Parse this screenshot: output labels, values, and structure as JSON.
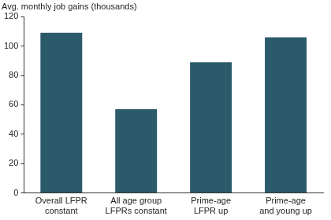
{
  "chart_data": {
    "type": "bar",
    "y_label": "Avg. monthly job gains (thousands)",
    "categories": [
      "Overall LFPR constant",
      "All age group LFPRs constant",
      "Prime-age LFPR up",
      "Prime-age and young up"
    ],
    "values": [
      109,
      57,
      89,
      106
    ],
    "color": "#2b5a6b",
    "ylim": [
      0,
      120
    ],
    "yticks": [
      0,
      20,
      40,
      60,
      80,
      100,
      120
    ],
    "grid": false
  }
}
